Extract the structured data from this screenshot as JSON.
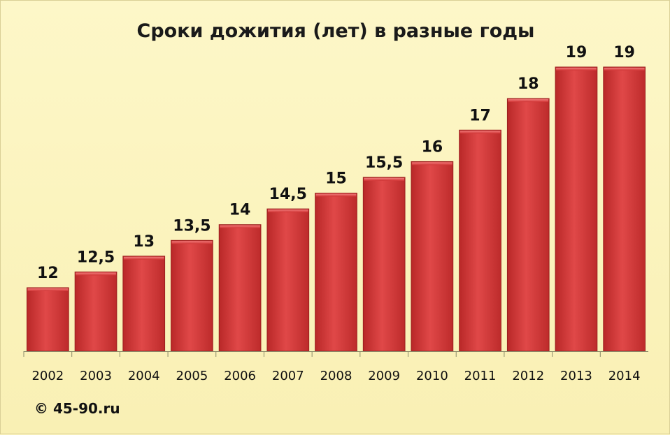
{
  "chart_data": {
    "type": "bar",
    "title": "Сроки дожития (лет) в разные годы",
    "categories": [
      "2002",
      "2003",
      "2004",
      "2005",
      "2006",
      "2007",
      "2008",
      "2009",
      "2010",
      "2011",
      "2012",
      "2013",
      "2014"
    ],
    "values": [
      12,
      12.5,
      13,
      13.5,
      14,
      14.5,
      15,
      15.5,
      16,
      17,
      18,
      19,
      19
    ],
    "value_labels": [
      "12",
      "12,5",
      "13",
      "13,5",
      "14",
      "14,5",
      "15",
      "15,5",
      "16",
      "17",
      "18",
      "19",
      "19"
    ],
    "xlabel": "",
    "ylabel": "",
    "grid": false,
    "bar_color": "#d23a3a"
  },
  "footer": {
    "copyright": "© 45-90.ru"
  }
}
